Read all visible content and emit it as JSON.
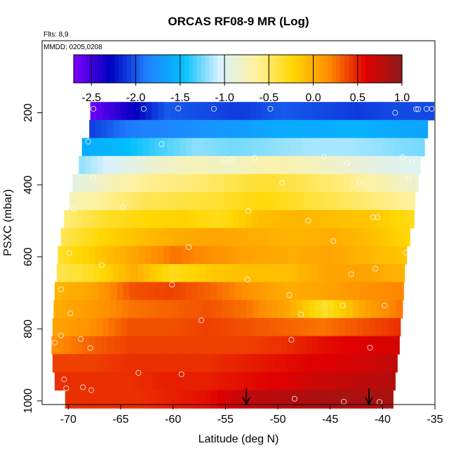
{
  "chart_data": {
    "type": "heatmap",
    "title": "ORCAS RF08-9 MR (Log)",
    "flights_note": "Flts: 8,9",
    "date_note": "MMDD: 0205,0208",
    "xlabel": "Latitude (deg N)",
    "ylabel": "PSXC (mbar)",
    "xlim": [
      -72.5,
      -35
    ],
    "ylim": [
      1010,
      0
    ],
    "x_ticks": [
      -70,
      -65,
      -60,
      -55,
      -50,
      -45,
      -40,
      -35
    ],
    "y_ticks": [
      200,
      400,
      600,
      800,
      1000
    ],
    "colorbar": {
      "range": [
        -2.7,
        1.0
      ],
      "ticks": [
        "-2.5",
        "-2.0",
        "-1.5",
        "-1.0",
        "-0.5",
        "0.0",
        "0.5",
        "1.0"
      ],
      "colors": [
        "#7f00ff",
        "#0000bf",
        "#2080ff",
        "#00bfff",
        "#d9f2ff",
        "#fff2a0",
        "#ffd700",
        "#ff8c00",
        "#e00000",
        "#8b1a1a"
      ]
    },
    "arrows_x": [
      -53,
      -41.3
    ],
    "pressure_bands": [
      {
        "pressure": 195,
        "lat_start": -67.9,
        "lat_end": -35.1,
        "values": [
          -2.65,
          -2.35,
          -2.0,
          -2.05,
          -2.1,
          -2.0,
          -2.05,
          -2.1,
          -2.05,
          -2.05
        ]
      },
      {
        "pressure": 245,
        "lat_start": -68.0,
        "lat_end": -35.7,
        "values": [
          -2.1,
          -1.9,
          -1.85,
          -1.75,
          -1.7,
          -1.6,
          -1.6,
          -1.55,
          -1.6,
          -1.65
        ]
      },
      {
        "pressure": 295,
        "lat_start": -68.7,
        "lat_end": -36.0,
        "values": [
          -1.6,
          -1.5,
          -1.35,
          -1.2,
          -1.25,
          -1.2,
          -1.15,
          -1.15,
          -1.2,
          -1.25
        ]
      },
      {
        "pressure": 345,
        "lat_start": -69.0,
        "lat_end": -36.4,
        "values": [
          -1.2,
          -1.0,
          -0.85,
          -0.75,
          -0.8,
          -0.7,
          -0.75,
          -0.85,
          -0.95,
          -1.0
        ]
      },
      {
        "pressure": 395,
        "lat_start": -69.6,
        "lat_end": -36.6,
        "values": [
          -0.95,
          -0.75,
          -0.6,
          -0.55,
          -0.45,
          -0.35,
          -0.45,
          -0.55,
          -0.7,
          -0.85
        ]
      },
      {
        "pressure": 445,
        "lat_start": -69.9,
        "lat_end": -36.9,
        "values": [
          -0.75,
          -0.6,
          -0.45,
          -0.4,
          -0.35,
          -0.25,
          -0.35,
          -0.45,
          -0.55,
          -0.65
        ]
      },
      {
        "pressure": 495,
        "lat_start": -70.4,
        "lat_end": -37.0,
        "values": [
          -0.55,
          -0.35,
          -0.25,
          -0.2,
          -0.3,
          -0.1,
          -0.05,
          -0.1,
          -0.15,
          -0.3
        ]
      },
      {
        "pressure": 545,
        "lat_start": -70.7,
        "lat_end": -37.4,
        "values": [
          -0.45,
          -0.25,
          -0.1,
          0.0,
          0.05,
          0.0,
          -0.05,
          0.0,
          -0.1,
          -0.25
        ]
      },
      {
        "pressure": 595,
        "lat_start": -71.0,
        "lat_end": -37.7,
        "values": [
          -0.35,
          -0.15,
          0.05,
          0.25,
          0.15,
          0.05,
          0.0,
          0.05,
          -0.05,
          -0.15
        ]
      },
      {
        "pressure": 645,
        "lat_start": -71.1,
        "lat_end": -37.9,
        "values": [
          -0.45,
          -0.3,
          0.0,
          -0.3,
          -0.15,
          -0.1,
          -0.1,
          0.05,
          0.05,
          -0.05
        ]
      },
      {
        "pressure": 695,
        "lat_start": -71.3,
        "lat_end": -38.0,
        "values": [
          -0.05,
          0.05,
          0.35,
          0.4,
          0.3,
          0.15,
          0.0,
          0.05,
          0.15,
          0.2
        ]
      },
      {
        "pressure": 745,
        "lat_start": -71.4,
        "lat_end": -38.1,
        "values": [
          0.0,
          0.1,
          0.25,
          0.3,
          0.35,
          0.25,
          0.05,
          -0.35,
          0.05,
          0.25
        ]
      },
      {
        "pressure": 795,
        "lat_start": -71.5,
        "lat_end": -38.3,
        "values": [
          0.05,
          0.15,
          0.35,
          0.35,
          0.4,
          0.35,
          0.3,
          0.25,
          0.35,
          0.45
        ]
      },
      {
        "pressure": 845,
        "lat_start": -71.6,
        "lat_end": -38.4,
        "values": [
          0.15,
          0.3,
          0.4,
          0.4,
          0.4,
          0.4,
          0.45,
          0.55,
          0.6,
          0.65
        ]
      },
      {
        "pressure": 895,
        "lat_start": -71.5,
        "lat_end": -38.6,
        "values": [
          0.4,
          0.4,
          0.45,
          0.45,
          0.45,
          0.5,
          0.55,
          0.6,
          0.65,
          0.75
        ]
      },
      {
        "pressure": 945,
        "lat_start": -71.3,
        "lat_end": -38.8,
        "values": [
          0.45,
          0.45,
          0.45,
          0.5,
          0.5,
          0.55,
          0.6,
          0.7,
          0.75,
          0.8
        ]
      },
      {
        "pressure": 995,
        "lat_start": -70.3,
        "lat_end": -39.0,
        "values": [
          0.45,
          0.45,
          0.45,
          0.5,
          0.55,
          0.75,
          0.8,
          0.85,
          0.85,
          0.85
        ]
      }
    ],
    "points": [
      {
        "x": -67.6,
        "y": 189
      },
      {
        "x": -62.8,
        "y": 189
      },
      {
        "x": -59.5,
        "y": 188
      },
      {
        "x": -56.1,
        "y": 189
      },
      {
        "x": -50.7,
        "y": 189
      },
      {
        "x": -38.8,
        "y": 200
      },
      {
        "x": -36.8,
        "y": 190
      },
      {
        "x": -36.6,
        "y": 190
      },
      {
        "x": -35.8,
        "y": 189
      },
      {
        "x": -35.3,
        "y": 189
      },
      {
        "x": -68.1,
        "y": 280
      },
      {
        "x": -61.1,
        "y": 287
      },
      {
        "x": -55.1,
        "y": 330
      },
      {
        "x": -54.4,
        "y": 331
      },
      {
        "x": -52.2,
        "y": 325
      },
      {
        "x": -45.6,
        "y": 322
      },
      {
        "x": -43.4,
        "y": 340
      },
      {
        "x": -38.1,
        "y": 323
      },
      {
        "x": -37.2,
        "y": 337
      },
      {
        "x": -67.6,
        "y": 380
      },
      {
        "x": -49.6,
        "y": 395
      },
      {
        "x": -42.2,
        "y": 392
      },
      {
        "x": -37.5,
        "y": 382
      },
      {
        "x": -64.8,
        "y": 463
      },
      {
        "x": -52.8,
        "y": 473
      },
      {
        "x": -69.5,
        "y": 466
      },
      {
        "x": -47.1,
        "y": 500
      },
      {
        "x": -40.9,
        "y": 490
      },
      {
        "x": -40.5,
        "y": 490
      },
      {
        "x": -58.5,
        "y": 573
      },
      {
        "x": -44.7,
        "y": 556
      },
      {
        "x": -37.8,
        "y": 588
      },
      {
        "x": -69.9,
        "y": 589
      },
      {
        "x": -66.8,
        "y": 623
      },
      {
        "x": -43.0,
        "y": 648
      },
      {
        "x": -40.7,
        "y": 633
      },
      {
        "x": -60.1,
        "y": 677
      },
      {
        "x": -52.9,
        "y": 663
      },
      {
        "x": -70.7,
        "y": 690
      },
      {
        "x": -48.9,
        "y": 706
      },
      {
        "x": -69.8,
        "y": 757
      },
      {
        "x": -57.3,
        "y": 776
      },
      {
        "x": -47.8,
        "y": 760
      },
      {
        "x": -43.8,
        "y": 735
      },
      {
        "x": -39.8,
        "y": 735
      },
      {
        "x": -71.9,
        "y": 826
      },
      {
        "x": -70.7,
        "y": 818
      },
      {
        "x": -71.3,
        "y": 838
      },
      {
        "x": -68.8,
        "y": 828
      },
      {
        "x": -67.9,
        "y": 853
      },
      {
        "x": -48.7,
        "y": 830
      },
      {
        "x": -41.2,
        "y": 852
      },
      {
        "x": -63.3,
        "y": 922
      },
      {
        "x": -59.2,
        "y": 926
      },
      {
        "x": -70.4,
        "y": 940
      },
      {
        "x": -71.8,
        "y": 954
      },
      {
        "x": -70.2,
        "y": 965
      },
      {
        "x": -68.6,
        "y": 962
      },
      {
        "x": -67.8,
        "y": 970
      },
      {
        "x": -48.4,
        "y": 994
      },
      {
        "x": -43.7,
        "y": 1002
      },
      {
        "x": -40.3,
        "y": 1003
      }
    ]
  }
}
